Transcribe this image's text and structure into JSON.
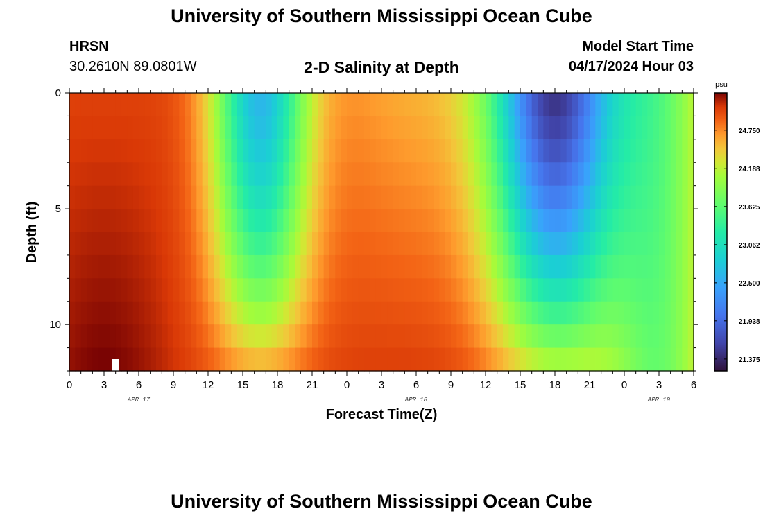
{
  "header": {
    "title": "University of Southern Mississippi Ocean Cube",
    "station": "HRSN",
    "coords": "30.2610N  89.0801W",
    "plot_title": "2-D Salinity at Depth",
    "start_label": "Model Start Time",
    "start_value": "04/17/2024 Hour 03"
  },
  "footer": {
    "title": "University of Southern Mississippi Ocean Cube"
  },
  "chart_data": {
    "type": "heatmap",
    "variable": "Salinity",
    "xlabel": "Forecast Time(Z)",
    "ylabel": "Depth (ft)",
    "x_range_hours": [
      0,
      54
    ],
    "y_range_ft": [
      0,
      12
    ],
    "x_tick_labels": [
      "0",
      "3",
      "6",
      "9",
      "12",
      "15",
      "18",
      "21",
      "0",
      "3",
      "6",
      "9",
      "12",
      "15",
      "18",
      "21",
      "0",
      "3",
      "6"
    ],
    "y_tick_labels": [
      "0",
      "5",
      "10"
    ],
    "date_labels": [
      {
        "hour": 6,
        "text": "APR 17"
      },
      {
        "hour": 30,
        "text": "APR 18"
      },
      {
        "hour": 51,
        "text": "APR 19"
      }
    ],
    "colorbar": {
      "unit": "psu",
      "min": 21.2,
      "max": 25.3,
      "tick_values": [
        24.75,
        24.188,
        23.625,
        23.062,
        22.5,
        21.938,
        21.375
      ],
      "tick_labels": [
        "24.750",
        "24.188",
        "23.625",
        "23.062",
        "22.500",
        "21.938",
        "21.375"
      ]
    },
    "grid": false
  },
  "colors": {
    "background": "#ffffff",
    "marker": "#ffffff"
  }
}
